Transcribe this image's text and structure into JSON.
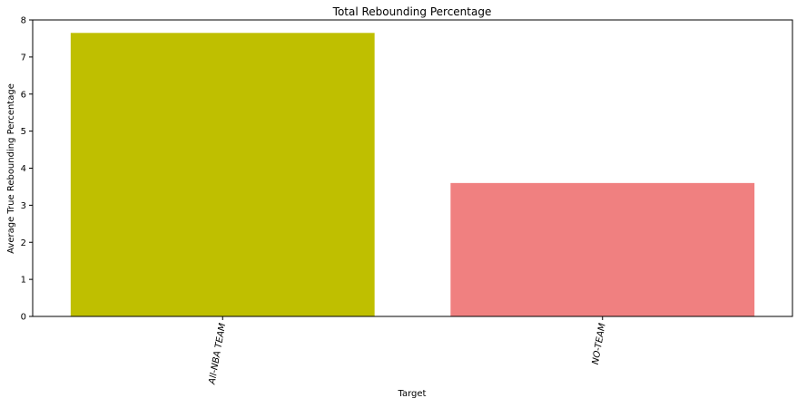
{
  "chart_data": {
    "type": "bar",
    "title": "Total Rebounding Percentage",
    "xlabel": "Target",
    "ylabel": "Average True Rebounding Percentage",
    "categories": [
      "All-NBA TEAM",
      "NO-TEAM"
    ],
    "values": [
      7.65,
      3.6
    ],
    "colors": [
      "#bfbf00",
      "#f08080"
    ],
    "ylim": [
      0,
      8
    ],
    "yticks": [
      0,
      1,
      2,
      3,
      4,
      5,
      6,
      7,
      8
    ],
    "grid": false,
    "legend": "none"
  }
}
